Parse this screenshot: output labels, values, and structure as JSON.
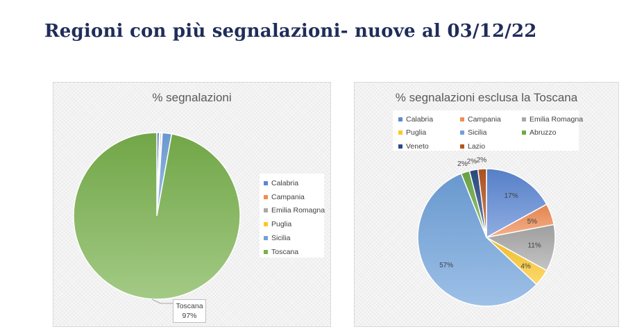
{
  "slide": {
    "title": "Regioni con più segnalazioni- nuove al 03/12/22"
  },
  "colors": {
    "Calabria": "#5b87d4",
    "Campania": "#f08c54",
    "Emilia Romagna": "#a8a8a8",
    "Puglia": "#fcc72a",
    "Sicilia": "#6fa2db",
    "Toscana": "#78b14c",
    "Abruzzo": "#6daa46",
    "Veneto": "#2b4b86",
    "Lazio": "#b5551f"
  },
  "chart_data": [
    {
      "type": "pie",
      "title": "% segnalazioni",
      "legend_position": "right",
      "legend": [
        "Calabria",
        "Campania",
        "Emilia Romagna",
        "Puglia",
        "Sicilia",
        "Toscana"
      ],
      "slices": [
        {
          "name": "Calabria",
          "value": 0.5
        },
        {
          "name": "Campania",
          "value": 0.15
        },
        {
          "name": "Emilia Romagna",
          "value": 0.3
        },
        {
          "name": "Puglia",
          "value": 0.1
        },
        {
          "name": "Sicilia",
          "value": 1.8
        },
        {
          "name": "Toscana",
          "value": 97.15
        }
      ],
      "callout": {
        "name": "Toscana",
        "value": "97%"
      }
    },
    {
      "type": "pie",
      "title": "% segnalazioni esclusa la Toscana",
      "legend_position": "top",
      "legend": [
        "Calabria",
        "Campania",
        "Emilia Romagna",
        "Puglia",
        "Sicilia",
        "Abruzzo",
        "Veneto",
        "Lazio"
      ],
      "slices": [
        {
          "name": "Calabria",
          "value": 17,
          "label": "17%"
        },
        {
          "name": "Campania",
          "value": 5,
          "label": "5%"
        },
        {
          "name": "Emilia Romagna",
          "value": 11,
          "label": "11%"
        },
        {
          "name": "Puglia",
          "value": 4,
          "label": "4%"
        },
        {
          "name": "Sicilia",
          "value": 57,
          "label": "57%"
        },
        {
          "name": "Abruzzo",
          "value": 2,
          "label": "2%"
        },
        {
          "name": "Veneto",
          "value": 2,
          "label": "2%"
        },
        {
          "name": "Lazio",
          "value": 2,
          "label": "2%"
        }
      ]
    }
  ]
}
